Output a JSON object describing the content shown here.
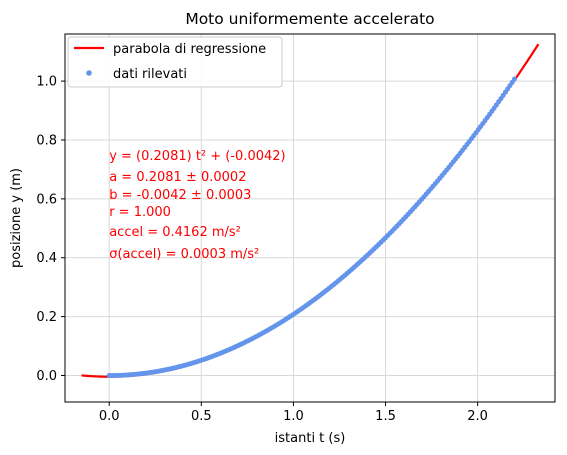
{
  "chart_data": {
    "type": "scatter",
    "title": "Moto uniformemente accelerato",
    "xlabel": "istanti t (s)",
    "ylabel": "posizione y (m)",
    "xlim": [
      -0.24,
      2.42
    ],
    "ylim": [
      -0.09,
      1.16
    ],
    "x_ticks": [
      "0.0",
      "0.5",
      "1.0",
      "1.5",
      "2.0"
    ],
    "y_ticks": [
      "0.0",
      "0.2",
      "0.4",
      "0.6",
      "0.8",
      "1.0"
    ],
    "grid": true,
    "legend_position": "top-left",
    "colors": {
      "fit": "#ff0000",
      "points": "#6495ed",
      "grid": "#d9d9d9"
    },
    "series": [
      {
        "name": "parabola di regressione",
        "kind": "line",
        "equation": {
          "a": 0.2081,
          "b": -0.0042
        },
        "x_range": [
          -0.15,
          2.33
        ]
      },
      {
        "name": "dati rilevati",
        "kind": "scatter",
        "x_range": [
          0.0,
          2.2
        ],
        "count": 180
      }
    ],
    "annotations": [
      "y = (0.2081) t² + (-0.0042)",
      "a = 0.2081 ± 0.0002",
      "b = -0.0042 ± 0.0003",
      " r =  1.000",
      "accel = 0.4162 m/s²",
      "σ(accel) = 0.0003 m/s²"
    ]
  }
}
